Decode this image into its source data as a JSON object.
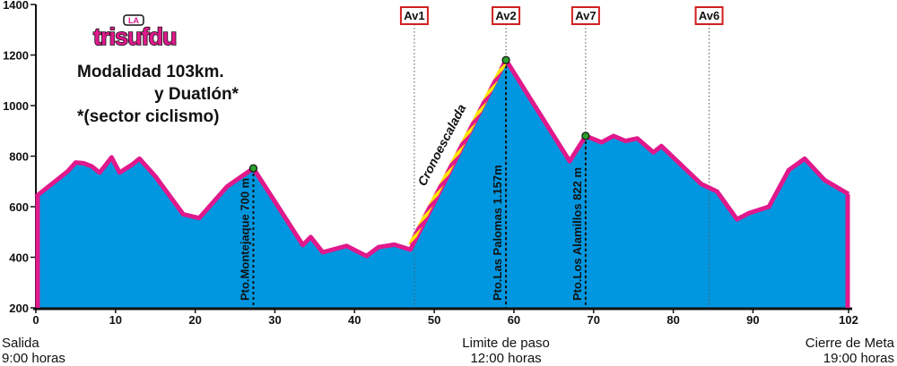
{
  "logo": {
    "small": "LA",
    "text": "trisufdu"
  },
  "heading": {
    "line1": "Modalidad 103km.",
    "line2": "y Duatlón*",
    "line3": "*(sector ciclismo)"
  },
  "chart_data": {
    "type": "area",
    "xlim": [
      0,
      102
    ],
    "ylim": [
      200,
      1400
    ],
    "x_ticks": [
      "0",
      "10",
      "20",
      "30",
      "40",
      "50",
      "60",
      "70",
      "80",
      "90",
      "102"
    ],
    "x_tick_values": [
      0,
      10,
      20,
      30,
      40,
      50,
      60,
      70,
      80,
      90,
      102
    ],
    "y_ticks": [
      "200",
      "400",
      "600",
      "800",
      "1000",
      "1200",
      "1400"
    ],
    "y_tick_values": [
      200,
      400,
      600,
      800,
      1000,
      1200,
      1400
    ],
    "grid": false,
    "fill_color": "#0097e0",
    "line_color": "#e0198c",
    "profile": [
      {
        "x": 0,
        "y": 640
      },
      {
        "x": 2,
        "y": 690
      },
      {
        "x": 4,
        "y": 740
      },
      {
        "x": 5,
        "y": 775
      },
      {
        "x": 6,
        "y": 772
      },
      {
        "x": 7,
        "y": 760
      },
      {
        "x": 8,
        "y": 735
      },
      {
        "x": 9.5,
        "y": 795
      },
      {
        "x": 10.5,
        "y": 735
      },
      {
        "x": 12,
        "y": 765
      },
      {
        "x": 13,
        "y": 790
      },
      {
        "x": 15,
        "y": 720
      },
      {
        "x": 18.5,
        "y": 570
      },
      {
        "x": 20.5,
        "y": 555
      },
      {
        "x": 24,
        "y": 680
      },
      {
        "x": 27.3,
        "y": 752
      },
      {
        "x": 30,
        "y": 620
      },
      {
        "x": 33.5,
        "y": 448
      },
      {
        "x": 34.5,
        "y": 480
      },
      {
        "x": 36,
        "y": 420
      },
      {
        "x": 39,
        "y": 445
      },
      {
        "x": 41.5,
        "y": 405
      },
      {
        "x": 43,
        "y": 440
      },
      {
        "x": 45,
        "y": 450
      },
      {
        "x": 47,
        "y": 430
      },
      {
        "x": 59,
        "y": 1180
      },
      {
        "x": 67,
        "y": 780
      },
      {
        "x": 69,
        "y": 880
      },
      {
        "x": 71,
        "y": 855
      },
      {
        "x": 72.5,
        "y": 880
      },
      {
        "x": 74,
        "y": 860
      },
      {
        "x": 75.5,
        "y": 870
      },
      {
        "x": 77.5,
        "y": 815
      },
      {
        "x": 78.5,
        "y": 840
      },
      {
        "x": 83.5,
        "y": 690
      },
      {
        "x": 85.5,
        "y": 660
      },
      {
        "x": 88,
        "y": 550
      },
      {
        "x": 89.5,
        "y": 575
      },
      {
        "x": 92,
        "y": 600
      },
      {
        "x": 94.5,
        "y": 745
      },
      {
        "x": 96.5,
        "y": 790
      },
      {
        "x": 99,
        "y": 705
      },
      {
        "x": 102,
        "y": 650
      }
    ],
    "summits": [
      {
        "x": 27.3,
        "y": 752,
        "label": "Pto.Montejaque 700 m"
      },
      {
        "x": 59,
        "y": 1180,
        "label": "Pto.Las Palomas 1.157m"
      },
      {
        "x": 69,
        "y": 880,
        "label": "Pto.Los Alamillos 822 m"
      }
    ],
    "climb": {
      "x_start": 47,
      "y_start": 450,
      "x_end": 59,
      "y_end": 1180,
      "label": "Cronoescalada"
    },
    "aid_stations": [
      {
        "label": "Av1",
        "x": 47.5
      },
      {
        "label": "Av2",
        "x": 59
      },
      {
        "label": "Av7",
        "x": 69
      },
      {
        "label": "Av6",
        "x": 84.5
      }
    ],
    "bottom_labels": [
      {
        "x": 0,
        "line1": "Salida",
        "line2": "9:00 horas",
        "align": "start"
      },
      {
        "x": 59,
        "line1": "Limite de paso",
        "line2": "12:00 horas",
        "align": "middle"
      },
      {
        "x": 102,
        "line1": "Cierre de Meta",
        "line2": "19:00 horas",
        "align": "end"
      }
    ]
  }
}
